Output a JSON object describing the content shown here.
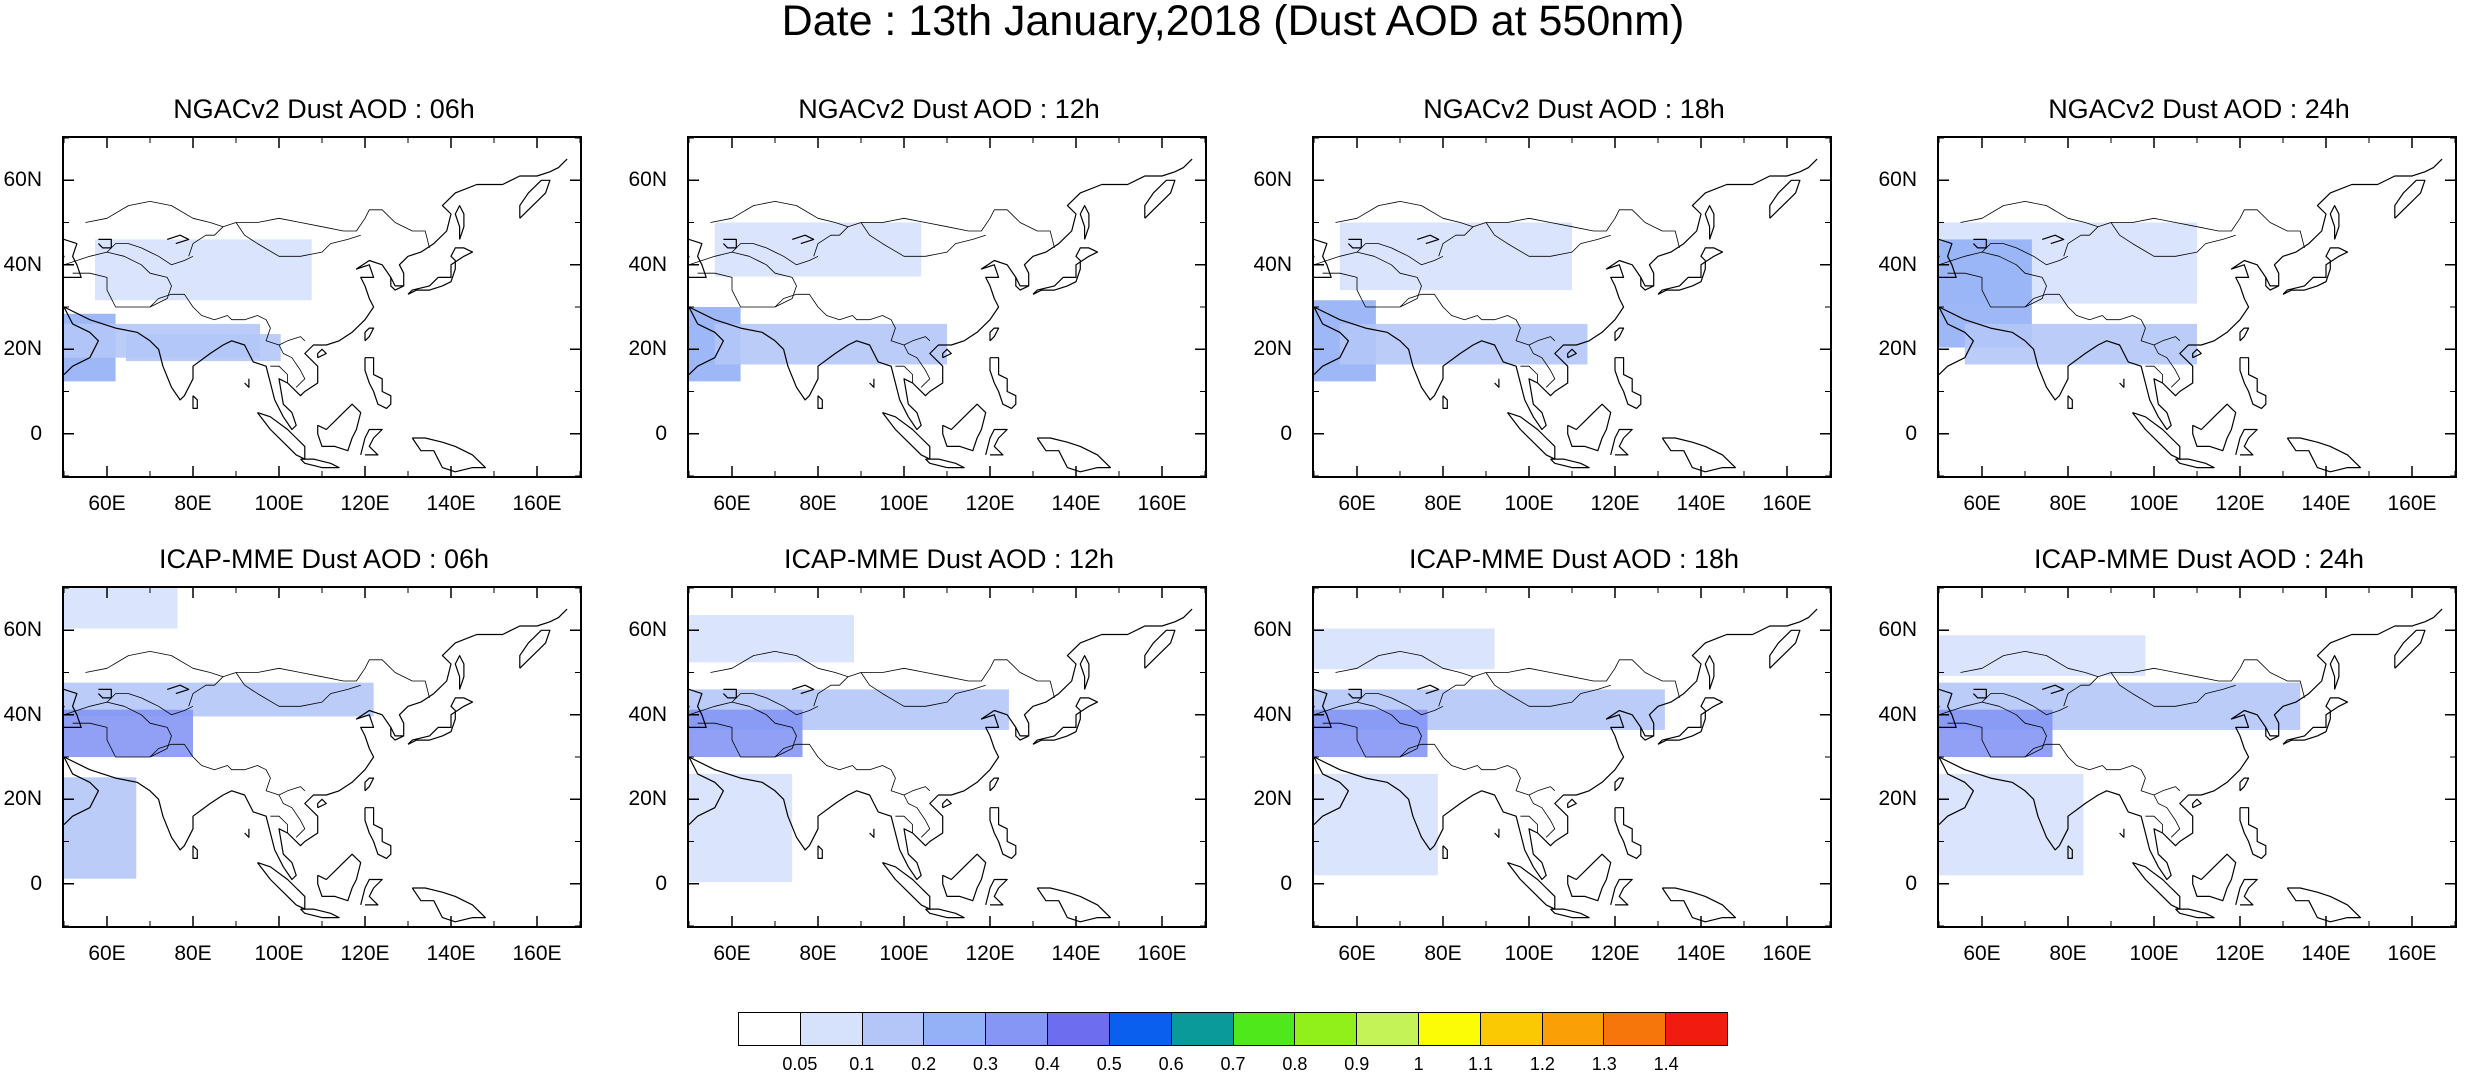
{
  "figure": {
    "title": "Date : 13th January,2018 (Dust AOD at 550nm)"
  },
  "panels": [
    {
      "title": "NGACv2 Dust AOD : 06h",
      "model": "NGACv2",
      "hour": "06h",
      "plumes": [
        [
          0.06,
          0.3,
          0.42,
          0.18,
          1
        ],
        [
          0.0,
          0.52,
          0.1,
          0.2,
          3
        ],
        [
          0.0,
          0.55,
          0.38,
          0.1,
          2
        ],
        [
          0.12,
          0.58,
          0.3,
          0.08,
          2
        ]
      ]
    },
    {
      "title": "NGACv2 Dust AOD : 12h",
      "model": "NGACv2",
      "hour": "12h",
      "plumes": [
        [
          0.05,
          0.25,
          0.4,
          0.16,
          1
        ],
        [
          0.0,
          0.5,
          0.1,
          0.22,
          3
        ],
        [
          0.05,
          0.55,
          0.45,
          0.12,
          2
        ]
      ]
    },
    {
      "title": "NGACv2 Dust AOD : 18h",
      "model": "NGACv2",
      "hour": "18h",
      "plumes": [
        [
          0.05,
          0.25,
          0.45,
          0.2,
          1
        ],
        [
          0.0,
          0.48,
          0.12,
          0.24,
          3
        ],
        [
          0.05,
          0.55,
          0.48,
          0.12,
          2
        ]
      ]
    },
    {
      "title": "NGACv2 Dust AOD : 24h",
      "model": "NGACv2",
      "hour": "24h",
      "plumes": [
        [
          0.0,
          0.25,
          0.5,
          0.24,
          1
        ],
        [
          0.0,
          0.3,
          0.18,
          0.32,
          3
        ],
        [
          0.05,
          0.55,
          0.45,
          0.12,
          2
        ]
      ]
    },
    {
      "title": "ICAP-MME Dust AOD : 06h",
      "model": "ICAP-MME",
      "hour": "06h",
      "plumes": [
        [
          0.0,
          0.0,
          0.22,
          0.12,
          1
        ],
        [
          0.0,
          0.28,
          0.6,
          0.1,
          2
        ],
        [
          0.0,
          0.36,
          0.25,
          0.14,
          4
        ],
        [
          0.0,
          0.56,
          0.14,
          0.3,
          2
        ]
      ]
    },
    {
      "title": "ICAP-MME Dust AOD : 12h",
      "model": "ICAP-MME",
      "hour": "12h",
      "plumes": [
        [
          0.0,
          0.08,
          0.32,
          0.14,
          1
        ],
        [
          0.0,
          0.3,
          0.62,
          0.12,
          2
        ],
        [
          0.0,
          0.36,
          0.22,
          0.14,
          4
        ],
        [
          0.0,
          0.55,
          0.2,
          0.32,
          1
        ]
      ]
    },
    {
      "title": "ICAP-MME Dust AOD : 18h",
      "model": "ICAP-MME",
      "hour": "18h",
      "plumes": [
        [
          0.0,
          0.12,
          0.35,
          0.12,
          1
        ],
        [
          0.0,
          0.3,
          0.68,
          0.12,
          2
        ],
        [
          0.0,
          0.36,
          0.22,
          0.14,
          4
        ],
        [
          0.0,
          0.55,
          0.24,
          0.3,
          1
        ]
      ]
    },
    {
      "title": "ICAP-MME Dust AOD : 24h",
      "model": "ICAP-MME",
      "hour": "24h",
      "plumes": [
        [
          0.0,
          0.14,
          0.4,
          0.12,
          1
        ],
        [
          0.0,
          0.28,
          0.7,
          0.14,
          2
        ],
        [
          0.0,
          0.36,
          0.22,
          0.14,
          4
        ],
        [
          0.0,
          0.55,
          0.28,
          0.3,
          1
        ]
      ]
    }
  ],
  "axes": {
    "lat_labels": [
      "60N",
      "40N",
      "20N",
      "0"
    ],
    "lat_values": [
      60,
      40,
      20,
      0
    ],
    "lon_labels": [
      "60E",
      "80E",
      "100E",
      "120E",
      "140E",
      "160E"
    ],
    "lon_values": [
      60,
      80,
      100,
      120,
      140,
      160
    ],
    "lon_range": [
      50,
      170
    ],
    "lat_range": [
      -10,
      70
    ]
  },
  "colorbar": {
    "labels": [
      "0.05",
      "0.1",
      "0.2",
      "0.3",
      "0.4",
      "0.5",
      "0.6",
      "0.7",
      "0.8",
      "0.9",
      "1",
      "1.1",
      "1.2",
      "1.3",
      "1.4"
    ],
    "colors": [
      "#ffffff",
      "#d6e1fc",
      "#b4c6f8",
      "#94b0f6",
      "#8596f4",
      "#6d6df0",
      "#0a5fef",
      "#0b9a9a",
      "#4fe81b",
      "#92f01a",
      "#c4f358",
      "#fbfc05",
      "#fbc804",
      "#fb9f07",
      "#f7760c",
      "#f21b10"
    ]
  }
}
